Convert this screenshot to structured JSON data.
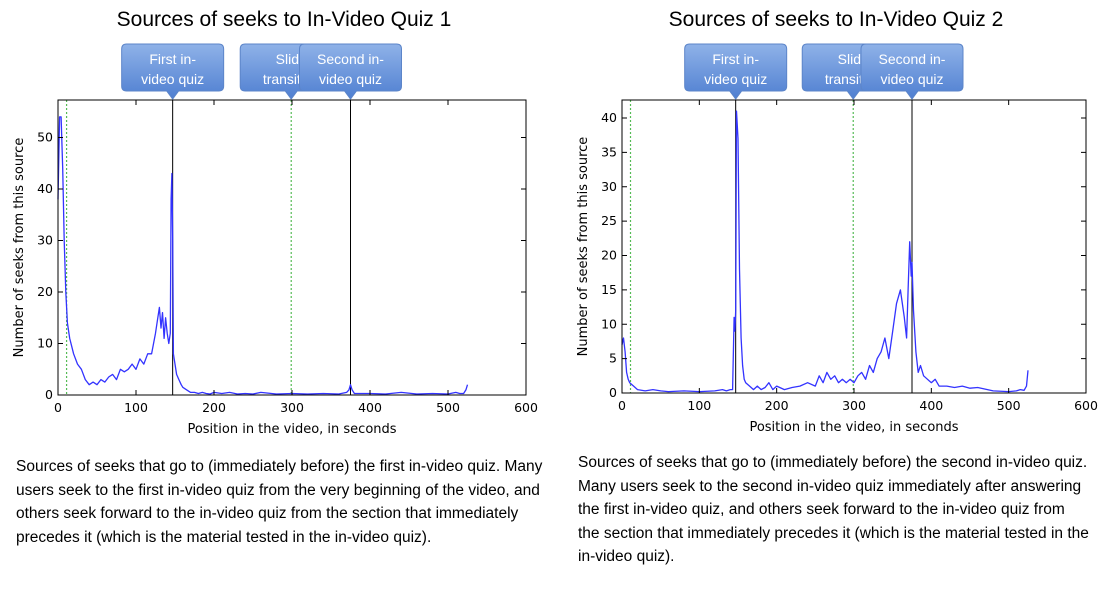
{
  "charts": [
    {
      "title": "Sources of seeks to In-Video Quiz 1",
      "caption": "Sources of seeks that go to (immediately before) the first in-video quiz. Many users seek to the first in-video quiz from the very beginning of the video, and others seek forward to the in-video quiz from the section that immediately precedes it (which is the material tested in the in-video quiz).",
      "callouts": [
        {
          "label": [
            "First in-",
            "video quiz"
          ],
          "x": 147
        },
        {
          "label": [
            "Slide",
            "transition"
          ],
          "x": 299
        },
        {
          "label": [
            "Second in-",
            "video quiz"
          ],
          "x": 375
        }
      ]
    },
    {
      "title": "Sources of seeks to In-Video Quiz 2",
      "caption": "Sources of seeks that go to (immediately before) the second in-video quiz. Many users seek to the second in-video quiz immediately after answering the first in-video quiz, and others seek forward to the in-video quiz from the section that immediately precedes it (which is the material tested in the in-video quiz).",
      "callouts": [
        {
          "label": [
            "First in-",
            "video quiz"
          ],
          "x": 147
        },
        {
          "label": [
            "Slide",
            "transition"
          ],
          "x": 299
        },
        {
          "label": [
            "Second in-",
            "video quiz"
          ],
          "x": 375
        }
      ]
    }
  ],
  "chart_data": [
    {
      "type": "line",
      "title": "Sources of seeks to In-Video Quiz 1",
      "xlabel": "Position in the video, in seconds",
      "ylabel": "Number of seeks from this source",
      "xlim": [
        0,
        600
      ],
      "ylim": [
        0,
        56
      ],
      "xticks": [
        0,
        100,
        200,
        300,
        400,
        500,
        600
      ],
      "yticks": [
        0,
        10,
        20,
        30,
        40,
        50
      ],
      "color": "#3333ff",
      "vlines": [
        {
          "x": 147,
          "style": "solid",
          "color": "#000000"
        },
        {
          "x": 375,
          "style": "solid",
          "color": "#000000"
        },
        {
          "x": 11,
          "style": "dotted",
          "color": "#55bb55"
        },
        {
          "x": 299,
          "style": "dotted",
          "color": "#55bb55"
        }
      ],
      "series": [
        {
          "x": [
            0,
            2,
            4,
            6,
            8,
            10,
            12,
            15,
            20,
            25,
            30,
            35,
            40,
            45,
            50,
            55,
            60,
            65,
            70,
            75,
            80,
            85,
            90,
            95,
            100,
            105,
            110,
            115,
            120,
            125,
            128,
            130,
            132,
            134,
            136,
            138,
            140,
            142,
            144,
            145,
            146,
            147,
            148,
            150,
            152,
            155,
            158,
            160,
            165,
            170,
            175,
            180,
            185,
            190,
            195,
            200,
            210,
            220,
            230,
            240,
            250,
            260,
            280,
            300,
            320,
            340,
            360,
            370,
            373,
            375,
            377,
            380,
            400,
            420,
            440,
            460,
            480,
            500,
            510,
            515,
            520,
            523,
            525
          ],
          "y": [
            38,
            54,
            54,
            44,
            30,
            20,
            14,
            11,
            8,
            6,
            5,
            3,
            2,
            2.5,
            2,
            3,
            2.5,
            3.5,
            4,
            3,
            5,
            4.5,
            5,
            6,
            5,
            7,
            6,
            8,
            8,
            12,
            15,
            17,
            13,
            16,
            11,
            15,
            12,
            10,
            12,
            38,
            43,
            30,
            8,
            6,
            4,
            3,
            2,
            1.5,
            1,
            0.5,
            0.5,
            0.3,
            0.5,
            0.3,
            0.2,
            0.5,
            0.3,
            0.5,
            0.2,
            0.3,
            0.2,
            0.5,
            0.2,
            0.3,
            0.2,
            0.3,
            0.2,
            0.5,
            1,
            2,
            1,
            0.3,
            0.3,
            0.2,
            0.5,
            0.2,
            0.3,
            0.2,
            0.5,
            0.3,
            0.3,
            1,
            2
          ]
        }
      ]
    },
    {
      "type": "line",
      "title": "Sources of seeks to In-Video Quiz 2",
      "xlabel": "Position in the video, in seconds",
      "ylabel": "Number of seeks from this source",
      "xlim": [
        0,
        600
      ],
      "ylim": [
        0,
        44
      ],
      "xticks": [
        0,
        100,
        200,
        300,
        400,
        500,
        600
      ],
      "yticks": [
        0,
        5,
        10,
        15,
        20,
        25,
        30,
        35,
        40
      ],
      "color": "#3333ff",
      "vlines": [
        {
          "x": 147,
          "style": "solid",
          "color": "#000000"
        },
        {
          "x": 375,
          "style": "solid",
          "color": "#000000"
        },
        {
          "x": 11,
          "style": "dotted",
          "color": "#55bb55"
        },
        {
          "x": 299,
          "style": "dotted",
          "color": "#55bb55"
        }
      ],
      "series": [
        {
          "x": [
            0,
            2,
            4,
            6,
            8,
            10,
            15,
            20,
            30,
            40,
            50,
            60,
            80,
            100,
            120,
            130,
            135,
            140,
            143,
            145,
            146,
            147,
            148,
            150,
            152,
            154,
            156,
            158,
            160,
            165,
            170,
            175,
            180,
            185,
            190,
            195,
            200,
            210,
            220,
            230,
            240,
            250,
            255,
            260,
            265,
            270,
            275,
            280,
            285,
            290,
            295,
            300,
            305,
            310,
            315,
            320,
            325,
            330,
            335,
            340,
            345,
            350,
            355,
            360,
            365,
            368,
            370,
            372,
            374,
            375,
            377,
            380,
            383,
            386,
            390,
            395,
            400,
            405,
            410,
            420,
            430,
            440,
            450,
            460,
            480,
            500,
            510,
            515,
            520,
            523,
            525
          ],
          "y": [
            7,
            8,
            6,
            3,
            2,
            1.5,
            1,
            0.5,
            0.3,
            0.5,
            0.3,
            0.2,
            0.3,
            0.2,
            0.3,
            0.5,
            0.3,
            0.5,
            0.5,
            11,
            9,
            12,
            41,
            37,
            18,
            8,
            4,
            2,
            1.5,
            1,
            0.5,
            1,
            0.5,
            0.8,
            1.5,
            0.5,
            1,
            0.5,
            0.8,
            1,
            1.5,
            1,
            2.5,
            1.5,
            3,
            2,
            2.5,
            1.5,
            2,
            1.5,
            2,
            1.5,
            2.5,
            3,
            2,
            4,
            3,
            5,
            6,
            8,
            5,
            9,
            13,
            15,
            11,
            8,
            15,
            22,
            17,
            19,
            12,
            6,
            3,
            4,
            2.5,
            2,
            1.5,
            2,
            1,
            1,
            0.8,
            1,
            0.7,
            0.8,
            0.3,
            0.2,
            0.3,
            0.5,
            0.4,
            1,
            3.3
          ]
        }
      ]
    }
  ]
}
